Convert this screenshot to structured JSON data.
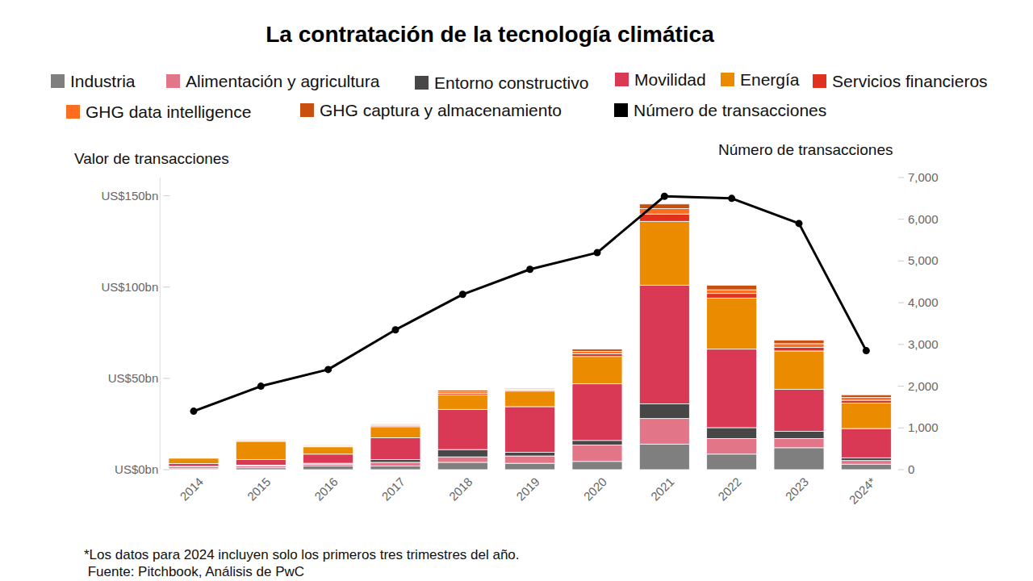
{
  "chart_data": {
    "type": "bar",
    "title": "La contratación de la tecnología climática",
    "y_label": "Valor de transacciones",
    "y2_label": "Número de transacciones",
    "stacked": true,
    "grid": false,
    "legend": "top",
    "categories": [
      "2014",
      "2015",
      "2016",
      "2017",
      "2018",
      "2019",
      "2020",
      "2021",
      "2022",
      "2023",
      "2024*"
    ],
    "ylim": [
      0,
      160
    ],
    "yticks": [
      {
        "value": 0,
        "label": "US$0bn"
      },
      {
        "value": 50,
        "label": "US$50bn"
      },
      {
        "value": 100,
        "label": "US$100bn"
      },
      {
        "value": 150,
        "label": "US$150bn"
      }
    ],
    "y2lim": [
      0,
      7000
    ],
    "y2ticks": [
      0,
      {
        "value": 1000,
        "label": "1,000"
      },
      {
        "value": 2000,
        "label": "2,000"
      },
      {
        "value": 3000,
        "label": "3,000"
      },
      {
        "value": 4000,
        "label": "4,000"
      },
      {
        "value": 5000,
        "label": "5,000"
      },
      {
        "value": 6000,
        "label": "6,000"
      },
      {
        "value": 7000,
        "label": "7,000"
      }
    ],
    "series": [
      {
        "name": "Industria",
        "color": "#7f7f7f",
        "type": "bar",
        "values": [
          0.5,
          1,
          2,
          2,
          4,
          3.5,
          4.5,
          14,
          8.5,
          12,
          3
        ]
      },
      {
        "name": "Alimentación y agricultura",
        "color": "#e27588",
        "type": "bar",
        "values": [
          1,
          1,
          1,
          2,
          3,
          4,
          9,
          14,
          8.5,
          5,
          2
        ]
      },
      {
        "name": "Entorno constructivo",
        "color": "#474747",
        "type": "bar",
        "values": [
          0.3,
          0.5,
          0.5,
          1.5,
          4,
          2,
          2.5,
          8,
          6,
          4,
          1.5
        ]
      },
      {
        "name": "Movilidad",
        "color": "#d93954",
        "type": "bar",
        "values": [
          1.5,
          3,
          5,
          12,
          22,
          25,
          31,
          65,
          43,
          23,
          16
        ]
      },
      {
        "name": "Energía",
        "color": "#eb8c00",
        "type": "bar",
        "values": [
          3,
          10,
          4,
          6,
          8,
          8.5,
          15,
          35,
          28,
          21,
          14
        ]
      },
      {
        "name": "Servicios financieros",
        "color": "#e0301e",
        "type": "bar",
        "values": [
          0.3,
          0.3,
          0.3,
          0.5,
          0.8,
          0.5,
          1.5,
          4,
          2.5,
          2,
          1.5
        ]
      },
      {
        "name": "GHG data intelligence",
        "color": "#fd6d1f",
        "type": "bar",
        "values": [
          0.2,
          0.3,
          0.3,
          0.5,
          0.8,
          0.5,
          1.3,
          3,
          2,
          2,
          1.5
        ]
      },
      {
        "name": "GHG captura y almacenamiento",
        "color": "#c94f0f",
        "type": "bar",
        "values": [
          0.2,
          0.3,
          0.3,
          0.5,
          0.9,
          0.5,
          1.2,
          2.5,
          2.5,
          2,
          1.5
        ]
      },
      {
        "name": "Número de transacciones",
        "color": "#000000",
        "type": "line",
        "axis": "y2",
        "marker": "circle",
        "values": [
          1400,
          2000,
          2400,
          3350,
          4200,
          4800,
          5200,
          6550,
          6500,
          5900,
          2850
        ]
      }
    ],
    "annotations": [
      "*Los datos para 2024 incluyen solo los primeros tres trimestres del año.",
      " Fuente: Pitchbook, Análisis de PwC"
    ]
  }
}
